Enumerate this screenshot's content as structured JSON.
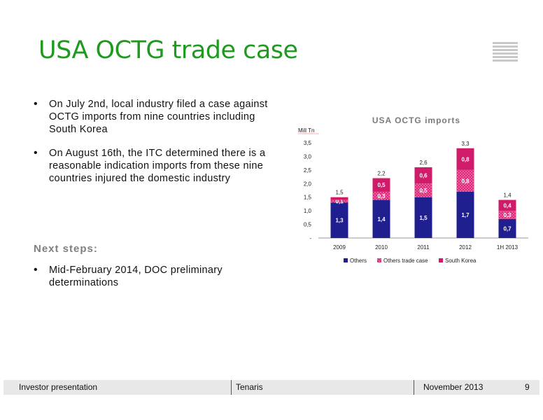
{
  "slide": {
    "title": "USA OCTG trade case",
    "bullets": [
      "On July 2nd, local industry filed a case against OCTG imports from nine countries including South Korea",
      "On August 16th, the ITC determined there is a reasonable indication imports from these nine countries injured the domestic industry"
    ],
    "next_steps_title": "Next steps:",
    "next_steps": [
      "Mid-February 2014, DOC preliminary determinations"
    ]
  },
  "footer": {
    "left": "Investor presentation",
    "center": "Tenaris",
    "date": "November 2013",
    "page": "9"
  },
  "chart_data": {
    "type": "bar",
    "stacked": true,
    "title": "USA OCTG imports",
    "unit_label": "Mill Tn",
    "categories": [
      "2009",
      "2010",
      "2011",
      "2012",
      "1H 2013"
    ],
    "series": [
      {
        "name": "Others",
        "values": [
          1.3,
          1.4,
          1.5,
          1.7,
          0.7
        ],
        "labels": [
          "1,3",
          "1,4",
          "1,5",
          "1,7",
          "0,7"
        ],
        "color": "#1f1f8f"
      },
      {
        "name": "Others trade case",
        "values": [
          0.1,
          0.3,
          0.5,
          0.8,
          0.3
        ],
        "labels": [
          "0,1",
          "0,3",
          "0,5",
          "0,8",
          "0,3"
        ],
        "color": "#e0287a"
      },
      {
        "name": "South Korea",
        "values": [
          0.1,
          0.5,
          0.6,
          0.8,
          0.4
        ],
        "labels": [
          "",
          "0,5",
          "0,6",
          "0,8",
          "0,4"
        ],
        "color": "#d01a6a"
      }
    ],
    "totals": [
      "1,5",
      "2,2",
      "2,6",
      "3,3",
      "1,4"
    ],
    "yticks": [
      "-",
      "0,5",
      "1,0",
      "1,5",
      "2,0",
      "2,5",
      "3,0",
      "3,5"
    ],
    "ylim": [
      0,
      3.5
    ],
    "legend_position": "bottom"
  }
}
